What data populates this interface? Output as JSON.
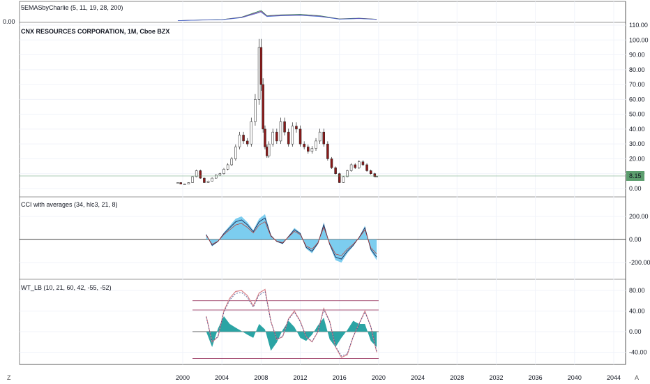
{
  "panes": {
    "ema": {
      "title": "5EMASbyCharlie (5, 11, 19, 28, 200)",
      "left_value": "0.00"
    },
    "price": {
      "title": "CNX RESOURCES CORPORATION, 1M, Cboe BZX",
      "ticks": [
        "110.00",
        "100.00",
        "90.00",
        "80.00",
        "70.00",
        "60.00",
        "50.00",
        "40.00",
        "30.00",
        "20.00",
        "10.00",
        "0.00"
      ],
      "last_price": "8.15"
    },
    "cci": {
      "title": "CCI with averages (34, hlc3, 21, 8)",
      "ticks": [
        "200.00",
        "0.00",
        "-200.00"
      ]
    },
    "wt": {
      "title": "WT_LB (10, 21, 60, 42, -55, -52)",
      "ticks": [
        "80.00",
        "40.00",
        "0.00",
        "-40.00"
      ]
    }
  },
  "time_axis": {
    "labels": [
      "2000",
      "2004",
      "2008",
      "2012",
      "2016",
      "2020",
      "2024",
      "2028",
      "2032",
      "2036",
      "2040",
      "2044"
    ],
    "left_button": "Z",
    "right_button": "A"
  },
  "colors": {
    "up": "#ffffff",
    "down": "#8b1a1a",
    "wick": "#222222",
    "last_price_bg": "#5c9e6e",
    "cci_hist": "#5bc0eb",
    "wt_hist": "#2ba4a4",
    "wt_line1": "#d9828a",
    "wt_line2": "#3c4a8c"
  },
  "chart_data": [
    {
      "type": "line",
      "title": "5EMASbyCharlie (5, 11, 19, 28, 200)",
      "series": [],
      "note_points_x": [
        1999.5,
        2002,
        2004,
        2006,
        2008,
        2008.6,
        2010,
        2012,
        2014,
        2016,
        2018,
        2019.8
      ],
      "values": [
        2,
        6,
        8,
        22,
        60,
        30,
        35,
        38,
        30,
        12,
        16,
        10
      ]
    },
    {
      "type": "candlestick",
      "title": "CNX RESOURCES CORPORATION, 1M, Cboe BZX",
      "ylim": [
        0,
        110
      ],
      "x": [
        1999.5,
        1999.8,
        2000.2,
        2000.6,
        2001.0,
        2001.4,
        2001.8,
        2002.2,
        2002.6,
        2003.0,
        2003.4,
        2003.8,
        2004.2,
        2004.6,
        2005.0,
        2005.4,
        2005.8,
        2006.2,
        2006.6,
        2007.0,
        2007.4,
        2007.8,
        2008.0,
        2008.2,
        2008.4,
        2008.6,
        2008.8,
        2009.2,
        2009.6,
        2010.0,
        2010.4,
        2010.8,
        2011.2,
        2011.6,
        2012.0,
        2012.4,
        2012.8,
        2013.2,
        2013.6,
        2014.0,
        2014.4,
        2014.8,
        2015.2,
        2015.6,
        2016.0,
        2016.4,
        2016.8,
        2017.2,
        2017.6,
        2018.0,
        2018.4,
        2018.8,
        2019.2,
        2019.6,
        2019.8
      ],
      "close": [
        4,
        3,
        3,
        4,
        8,
        12,
        7,
        4,
        5,
        7,
        9,
        10,
        13,
        16,
        20,
        28,
        36,
        32,
        30,
        45,
        60,
        95,
        70,
        40,
        28,
        22,
        30,
        38,
        32,
        45,
        38,
        30,
        42,
        40,
        30,
        28,
        25,
        27,
        32,
        38,
        30,
        20,
        14,
        10,
        4,
        8,
        12,
        16,
        14,
        18,
        16,
        12,
        10,
        8,
        8.15
      ]
    },
    {
      "type": "line",
      "title": "CCI with averages (34, hlc3, 21, 8)",
      "ylim": [
        -300,
        300
      ],
      "x": [
        2002.4,
        2003.0,
        2003.6,
        2004.2,
        2004.8,
        2005.4,
        2006.0,
        2006.6,
        2007.2,
        2007.8,
        2008.4,
        2009.0,
        2009.6,
        2010.2,
        2010.8,
        2011.4,
        2012.0,
        2012.6,
        2013.2,
        2013.8,
        2014.4,
        2015.0,
        2015.6,
        2016.2,
        2016.8,
        2017.4,
        2018.0,
        2018.6,
        2019.2,
        2019.8
      ],
      "values": [
        50,
        -60,
        -20,
        60,
        120,
        180,
        200,
        150,
        80,
        180,
        220,
        40,
        -20,
        -40,
        30,
        100,
        60,
        -80,
        -120,
        -40,
        150,
        -50,
        -180,
        -200,
        -120,
        -60,
        20,
        120,
        -100,
        -180
      ]
    },
    {
      "type": "line",
      "title": "WT_LB (10, 21, 60, 42, -55, -52)",
      "ylim": [
        -55,
        95
      ],
      "levels": [
        60,
        42,
        0,
        -52
      ],
      "x": [
        2002.4,
        2003.0,
        2003.6,
        2004.2,
        2004.8,
        2005.4,
        2006.0,
        2006.6,
        2007.2,
        2007.8,
        2008.4,
        2009.0,
        2009.6,
        2010.2,
        2010.8,
        2011.4,
        2012.0,
        2012.6,
        2013.2,
        2013.8,
        2014.4,
        2015.0,
        2015.6,
        2016.2,
        2016.8,
        2017.4,
        2018.0,
        2018.6,
        2019.2,
        2019.8
      ],
      "values": [
        30,
        -20,
        -10,
        40,
        65,
        78,
        80,
        70,
        50,
        75,
        82,
        20,
        -15,
        -10,
        25,
        40,
        20,
        -10,
        -20,
        0,
        45,
        20,
        -30,
        -50,
        -45,
        -10,
        15,
        40,
        10,
        -40
      ]
    }
  ]
}
